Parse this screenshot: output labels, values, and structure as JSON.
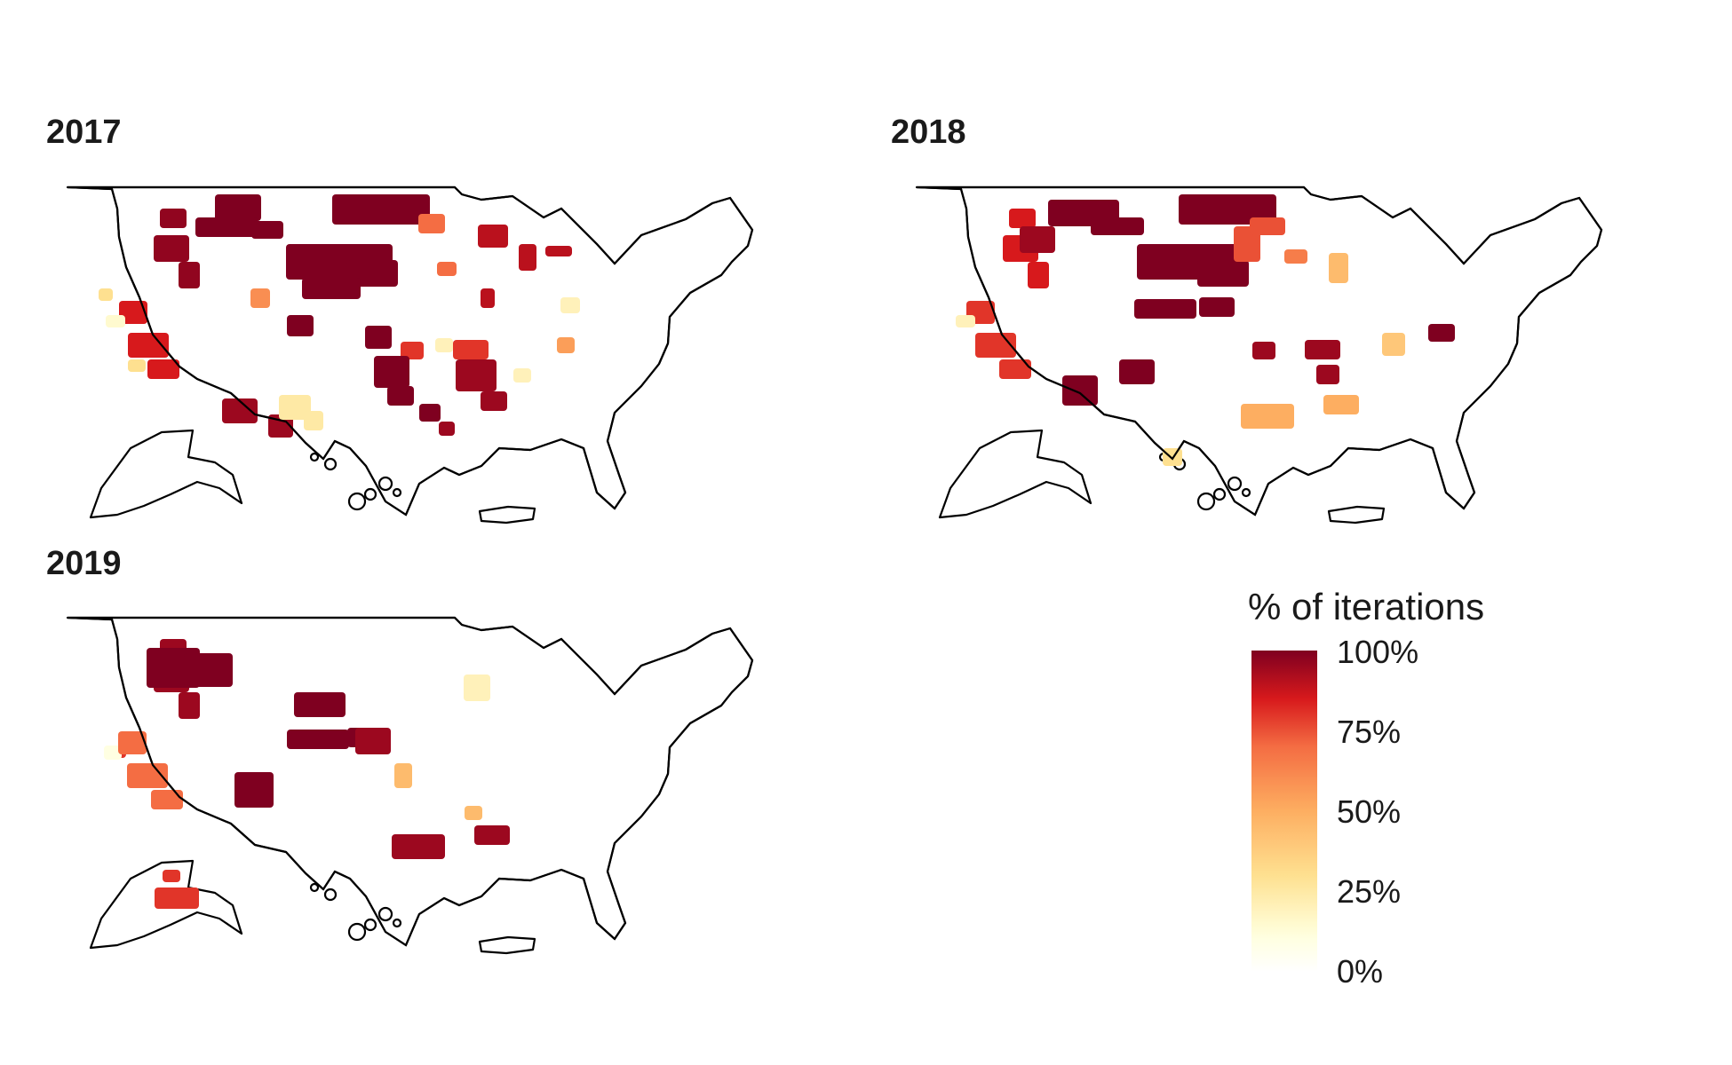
{
  "panels": [
    {
      "title": "2017",
      "regions": [
        {
          "area": "pacific-northwest",
          "value": 0.97
        },
        {
          "area": "northern-rockies",
          "value": 1.0
        },
        {
          "area": "northern-plains",
          "value": 1.0
        },
        {
          "area": "upper-midwest",
          "value": 0.7
        },
        {
          "area": "great-lakes",
          "value": 0.9
        },
        {
          "area": "central-plains",
          "value": 1.0
        },
        {
          "area": "colorado",
          "value": 0.6
        },
        {
          "area": "california",
          "value": 0.85
        },
        {
          "area": "southern-california",
          "value": 0.3
        },
        {
          "area": "nevada",
          "value": 0.15
        },
        {
          "area": "ohio-valley",
          "value": 0.8
        },
        {
          "area": "texas-west",
          "value": 0.95
        },
        {
          "area": "texas-south",
          "value": 0.25
        },
        {
          "area": "mid-south",
          "value": 1.0
        },
        {
          "area": "southeast",
          "value": 0.95
        },
        {
          "area": "appalachia",
          "value": 0.2
        },
        {
          "area": "mid-atlantic",
          "value": 0.55
        },
        {
          "area": "new-york",
          "value": 0.9
        }
      ]
    },
    {
      "title": "2018",
      "regions": [
        {
          "area": "pacific-northwest",
          "value": 0.85
        },
        {
          "area": "idaho",
          "value": 0.95
        },
        {
          "area": "montana",
          "value": 1.0
        },
        {
          "area": "northern-plains",
          "value": 1.0
        },
        {
          "area": "minnesota",
          "value": 0.75
        },
        {
          "area": "wisconsin",
          "value": 0.65
        },
        {
          "area": "california",
          "value": 0.8
        },
        {
          "area": "nevada",
          "value": 0.2
        },
        {
          "area": "kansas",
          "value": 1.0
        },
        {
          "area": "ohio-valley",
          "value": 0.95
        },
        {
          "area": "indiana",
          "value": 0.45
        },
        {
          "area": "new-mexico",
          "value": 1.0
        },
        {
          "area": "texas-north",
          "value": 1.0
        },
        {
          "area": "gulf-coast",
          "value": 0.5
        },
        {
          "area": "south-texas",
          "value": 0.3
        },
        {
          "area": "carolinas",
          "value": 0.4
        },
        {
          "area": "virginia",
          "value": 1.0
        }
      ]
    },
    {
      "title": "2019",
      "regions": [
        {
          "area": "pacific-northwest",
          "value": 0.95
        },
        {
          "area": "idaho",
          "value": 1.0
        },
        {
          "area": "nevada",
          "value": 0.8
        },
        {
          "area": "california-north",
          "value": 0.1
        },
        {
          "area": "california",
          "value": 0.7
        },
        {
          "area": "utah",
          "value": 1.0
        },
        {
          "area": "colorado",
          "value": 1.0
        },
        {
          "area": "arizona",
          "value": 1.0
        },
        {
          "area": "nebraska",
          "value": 1.0
        },
        {
          "area": "kansas",
          "value": 1.0
        },
        {
          "area": "iowa",
          "value": 0.95
        },
        {
          "area": "michigan",
          "value": 0.2
        },
        {
          "area": "louisiana",
          "value": 0.45
        },
        {
          "area": "gulf-coast",
          "value": 0.95
        },
        {
          "area": "florida-panhandle",
          "value": 0.45
        },
        {
          "area": "alaska",
          "value": 0.8
        }
      ]
    }
  ],
  "legend": {
    "title": "% of iterations",
    "ticks": [
      "100%",
      "75%",
      "50%",
      "25%",
      "0%"
    ],
    "colors": [
      "#7f0020",
      "#d7191c",
      "#f46d43",
      "#fdae61",
      "#fee090",
      "#ffffe8",
      "#ffffff"
    ]
  },
  "colors": {
    "outline": "#000000",
    "title_text": "#1a1a1a"
  }
}
